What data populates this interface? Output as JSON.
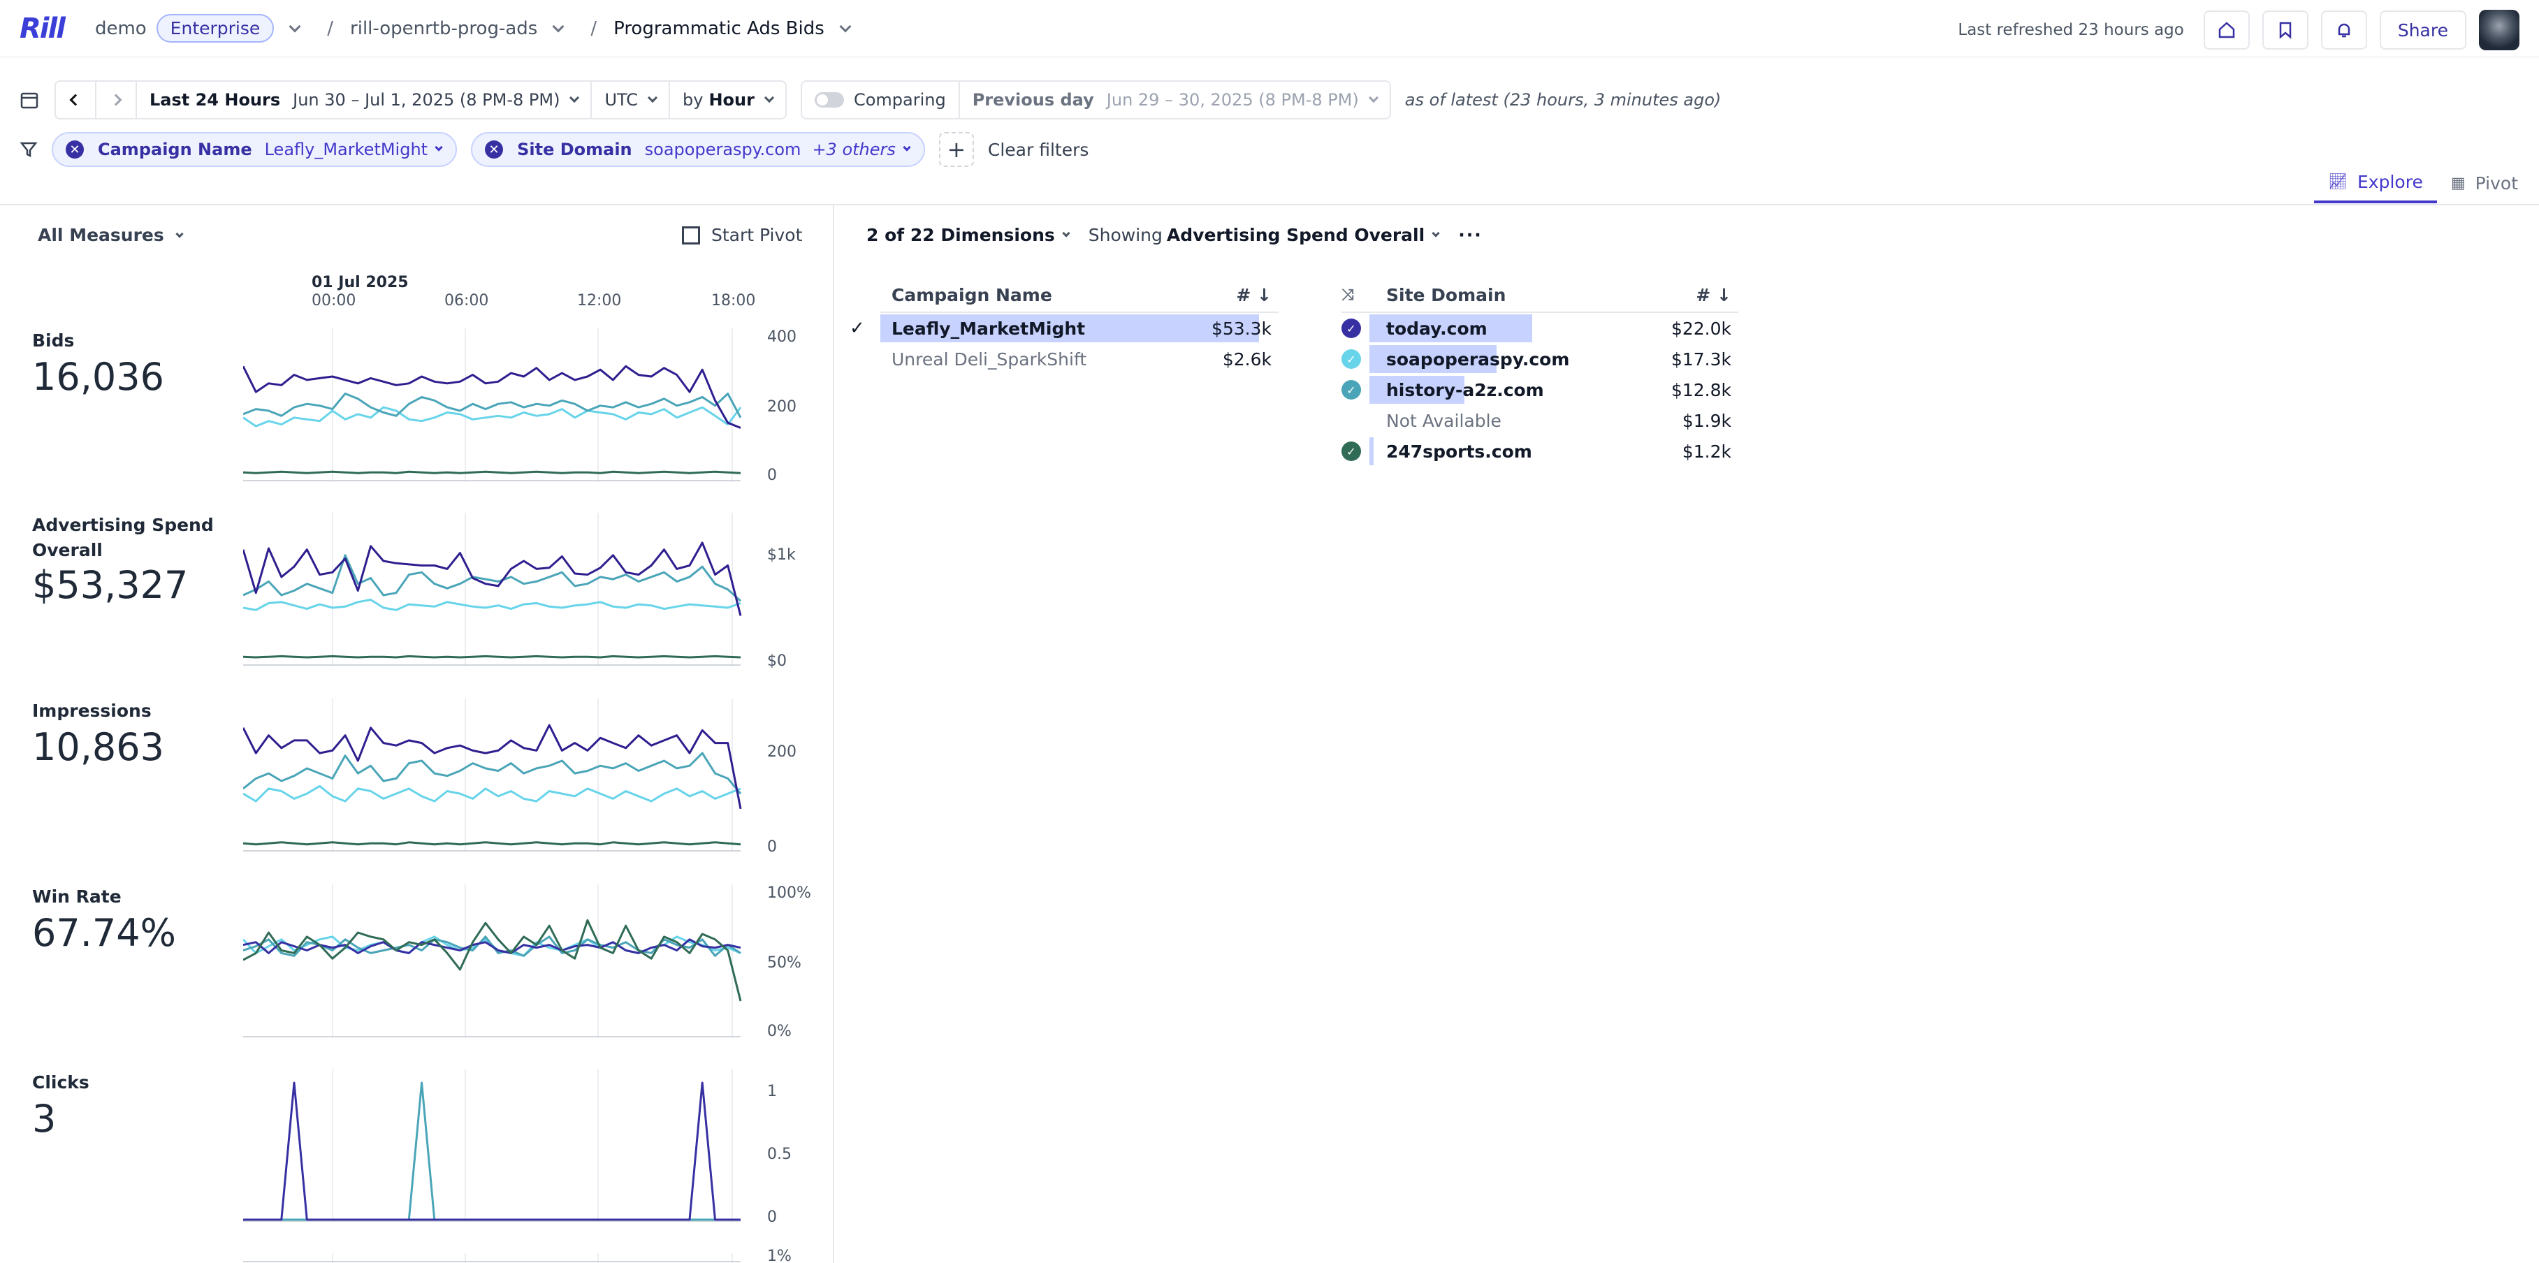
{
  "topbar": {
    "logo": "Rill",
    "org": "demo",
    "org_badge": "Enterprise",
    "project": "rill-openrtb-prog-ads",
    "dashboard": "Programmatic Ads Bids",
    "last_refreshed": "Last refreshed 23 hours ago",
    "share_label": "Share"
  },
  "time_controls": {
    "range_label": "Last 24 Hours",
    "range_value": "Jun 30 – Jul 1, 2025 (8 PM-8 PM)",
    "timezone": "UTC",
    "grain_prefix": "by",
    "grain": "Hour",
    "comparing_label": "Comparing",
    "compare_label": "Previous day",
    "compare_value": "Jun 29 – 30, 2025 (8 PM-8 PM)",
    "as_of": "as of latest (23 hours, 3 minutes ago)"
  },
  "filters": {
    "chips": [
      {
        "dimension": "Campaign Name",
        "value": "Leafly_MarketMight",
        "extra": ""
      },
      {
        "dimension": "Site Domain",
        "value": "soapoperaspy.com",
        "extra": "+3 others"
      }
    ],
    "clear_label": "Clear filters"
  },
  "tabs": [
    {
      "label": "Explore",
      "active": true
    },
    {
      "label": "Pivot",
      "active": false
    }
  ],
  "left_panel": {
    "all_measures": "All Measures",
    "start_pivot": "Start Pivot",
    "time_axis": {
      "date": "01 Jul 2025",
      "ticks": [
        "00:00",
        "06:00",
        "12:00",
        "18:00"
      ]
    },
    "measures": [
      {
        "label": "Bids",
        "value": "16,036",
        "yticks": [
          "400",
          "200",
          "0"
        ],
        "ymax": 400,
        "series": [
          [
            330,
            255,
            280,
            275,
            305,
            290,
            295,
            300,
            290,
            280,
            295,
            285,
            275,
            280,
            300,
            285,
            280,
            285,
            305,
            280,
            285,
            310,
            300,
            325,
            290,
            310,
            290,
            300,
            320,
            290,
            330,
            305,
            300,
            325,
            305,
            255,
            320,
            230,
            165,
            150
          ],
          [
            180,
            155,
            170,
            160,
            180,
            175,
            170,
            200,
            175,
            190,
            180,
            210,
            200,
            175,
            170,
            180,
            195,
            190,
            175,
            180,
            185,
            180,
            195,
            185,
            190,
            205,
            180,
            200,
            195,
            190,
            175,
            195,
            190,
            205,
            180,
            195,
            210,
            185,
            160,
            210
          ],
          [
            190,
            205,
            200,
            185,
            210,
            220,
            215,
            205,
            250,
            235,
            210,
            195,
            185,
            220,
            240,
            230,
            210,
            200,
            220,
            205,
            220,
            225,
            210,
            220,
            215,
            230,
            220,
            200,
            215,
            210,
            225,
            210,
            220,
            235,
            215,
            225,
            240,
            215,
            250,
            180
          ],
          [
            20,
            18,
            20,
            22,
            20,
            18,
            20,
            22,
            20,
            18,
            20,
            20,
            18,
            22,
            20,
            18,
            20,
            18,
            20,
            22,
            20,
            18,
            20,
            22,
            20,
            18,
            20,
            20,
            18,
            22,
            20,
            18,
            20,
            22,
            20,
            18,
            20,
            22,
            20,
            18
          ]
        ]
      },
      {
        "label": "Advertising Spend Overall",
        "value": "$53,327",
        "yticks": [
          "$1k",
          "$0"
        ],
        "ymax": 1200,
        "series": [
          [
            1000,
            620,
            1010,
            760,
            850,
            1000,
            780,
            800,
            920,
            640,
            1030,
            900,
            880,
            870,
            860,
            860,
            830,
            970,
            750,
            700,
            680,
            830,
            900,
            830,
            840,
            940,
            790,
            780,
            840,
            950,
            800,
            780,
            860,
            1000,
            830,
            860,
            1060,
            780,
            860,
            420
          ],
          [
            490,
            470,
            530,
            540,
            510,
            480,
            520,
            490,
            500,
            540,
            560,
            490,
            470,
            520,
            510,
            500,
            540,
            520,
            500,
            490,
            510,
            480,
            520,
            530,
            500,
            490,
            510,
            520,
            540,
            500,
            490,
            520,
            510,
            480,
            500,
            520,
            510,
            500,
            490,
            530
          ],
          [
            600,
            650,
            720,
            600,
            640,
            700,
            660,
            620,
            950,
            700,
            750,
            600,
            620,
            780,
            800,
            700,
            660,
            700,
            760,
            740,
            720,
            760,
            700,
            720,
            760,
            800,
            680,
            700,
            760,
            740,
            780,
            720,
            760,
            800,
            720,
            760,
            850,
            700,
            650,
            550
          ],
          [
            60,
            55,
            60,
            65,
            60,
            55,
            60,
            65,
            60,
            55,
            60,
            60,
            55,
            65,
            60,
            55,
            60,
            55,
            60,
            65,
            60,
            55,
            60,
            65,
            60,
            55,
            60,
            60,
            55,
            65,
            60,
            55,
            60,
            65,
            60,
            55,
            60,
            65,
            60,
            55
          ]
        ]
      },
      {
        "label": "Impressions",
        "value": "10,863",
        "yticks": [
          "200",
          "0"
        ],
        "ymax": 270,
        "series": [
          [
            240,
            190,
            225,
            200,
            215,
            215,
            190,
            195,
            225,
            175,
            240,
            210,
            205,
            215,
            210,
            190,
            200,
            205,
            195,
            190,
            195,
            215,
            200,
            195,
            245,
            195,
            210,
            195,
            220,
            210,
            200,
            225,
            205,
            215,
            225,
            190,
            235,
            210,
            210,
            80
          ],
          [
            110,
            95,
            120,
            115,
            100,
            110,
            125,
            105,
            95,
            120,
            115,
            100,
            110,
            120,
            105,
            95,
            115,
            110,
            100,
            120,
            105,
            115,
            100,
            95,
            115,
            110,
            105,
            120,
            110,
            100,
            115,
            105,
            95,
            110,
            120,
            105,
            115,
            100,
            110,
            120
          ],
          [
            120,
            140,
            150,
            135,
            145,
            160,
            150,
            140,
            185,
            150,
            165,
            135,
            140,
            170,
            175,
            150,
            145,
            155,
            170,
            160,
            155,
            170,
            150,
            160,
            165,
            175,
            150,
            155,
            165,
            160,
            170,
            155,
            165,
            175,
            160,
            165,
            190,
            150,
            140,
            110
          ],
          [
            12,
            10,
            12,
            14,
            12,
            10,
            12,
            14,
            12,
            10,
            12,
            12,
            10,
            14,
            12,
            10,
            12,
            10,
            12,
            14,
            12,
            10,
            12,
            14,
            12,
            10,
            12,
            12,
            10,
            14,
            12,
            10,
            12,
            14,
            12,
            10,
            12,
            14,
            12,
            10
          ]
        ]
      },
      {
        "label": "Win Rate",
        "value": "67.74%",
        "yticks": [
          "100%",
          "50%",
          "0%"
        ],
        "ymax": 100,
        "series": [
          [
            66,
            68,
            60,
            68,
            65,
            62,
            66,
            64,
            66,
            60,
            65,
            68,
            62,
            60,
            68,
            66,
            64,
            62,
            66,
            68,
            62,
            60,
            66,
            64,
            66,
            62,
            65,
            66,
            64,
            68,
            62,
            60,
            64,
            66,
            62,
            70,
            65,
            64,
            66,
            64
          ],
          [
            70,
            60,
            65,
            70,
            62,
            66,
            70,
            72,
            64,
            62,
            66,
            68,
            62,
            60,
            68,
            72,
            66,
            62,
            64,
            70,
            62,
            60,
            58,
            68,
            64,
            62,
            66,
            70,
            64,
            68,
            62,
            60,
            64,
            66,
            72,
            68,
            66,
            62,
            64,
            60
          ],
          [
            62,
            65,
            70,
            60,
            58,
            68,
            66,
            62,
            70,
            64,
            60,
            62,
            64,
            66,
            62,
            70,
            68,
            64,
            62,
            72,
            60,
            62,
            58,
            66,
            72,
            60,
            62,
            70,
            66,
            64,
            68,
            62,
            60,
            70,
            66,
            64,
            70,
            58,
            66,
            60
          ],
          [
            55,
            60,
            75,
            62,
            60,
            72,
            66,
            56,
            64,
            75,
            72,
            70,
            62,
            68,
            66,
            70,
            60,
            48,
            68,
            82,
            70,
            60,
            72,
            66,
            80,
            62,
            56,
            84,
            64,
            60,
            80,
            62,
            56,
            72,
            68,
            60,
            74,
            70,
            62,
            25
          ]
        ]
      },
      {
        "label": "Clicks",
        "value": "3",
        "yticks": [
          "1",
          "0.5",
          "0"
        ],
        "ymax": 1,
        "series": [
          [
            0,
            0,
            0,
            0,
            1,
            0,
            0,
            0,
            0,
            0,
            0,
            0,
            0,
            0,
            0,
            0,
            0,
            0,
            0,
            0,
            0,
            0,
            0,
            0,
            0,
            0,
            0,
            0,
            0,
            0,
            0,
            0,
            0,
            0,
            0,
            0,
            1,
            0,
            0,
            0
          ],
          [
            0,
            0,
            0,
            0,
            0,
            0,
            0,
            0,
            0,
            0,
            0,
            0,
            0,
            0,
            1,
            0,
            0,
            0,
            0,
            0,
            0,
            0,
            0,
            0,
            0,
            0,
            0,
            0,
            0,
            0,
            0,
            0,
            0,
            0,
            0,
            0,
            0,
            0,
            0,
            0
          ]
        ]
      },
      {
        "label": "",
        "value": "",
        "yticks": [
          "1%"
        ],
        "ymax": 1,
        "series": []
      }
    ]
  },
  "right_panel": {
    "dim_count": "2 of 22 Dimensions",
    "showing_prefix": "Showing",
    "showing_measure": "Advertising Spend Overall",
    "campaign_table": {
      "header": "Campaign Name",
      "sort_label": "# ↓",
      "rows": [
        {
          "name": "Leafly_MarketMight",
          "value": "$53.3k",
          "selected": true,
          "share": 0.95
        },
        {
          "name": "Unreal Deli_SparkShift",
          "value": "$2.6k",
          "selected": false,
          "share": 0
        }
      ]
    },
    "site_table": {
      "header": "Site Domain",
      "sort_label": "# ↓",
      "rows": [
        {
          "name": "today.com",
          "value": "$22.0k",
          "selected": true,
          "color": "#3730a3",
          "share": 0.41
        },
        {
          "name": "soapoperaspy.com",
          "value": "$17.3k",
          "selected": true,
          "color": "#67d4ea",
          "share": 0.32
        },
        {
          "name": "history-a2z.com",
          "value": "$12.8k",
          "selected": true,
          "color": "#4aa5b8",
          "share": 0.24
        },
        {
          "name": "Not Available",
          "value": "$1.9k",
          "selected": false,
          "color": "",
          "share": 0
        },
        {
          "name": "247sports.com",
          "value": "$1.2k",
          "selected": true,
          "color": "#2f6b55",
          "share": 0.02
        }
      ]
    }
  },
  "colors": {
    "accent": "#4338ca",
    "series": [
      "#2e1f8f",
      "#2f6b55",
      "#67d4ea",
      "#4aa5b8"
    ],
    "win_series": [
      "#3730a3",
      "#67d4ea",
      "#4aa5b8",
      "#2f6b55"
    ],
    "click_series": [
      "#3730a3",
      "#4aa5b8"
    ],
    "selection_bar": "#c7d2fe"
  }
}
